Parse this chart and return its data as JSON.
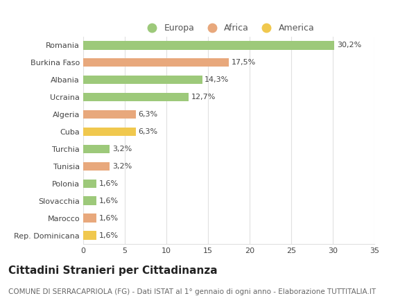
{
  "categories": [
    "Romania",
    "Burkina Faso",
    "Albania",
    "Ucraina",
    "Algeria",
    "Cuba",
    "Turchia",
    "Tunisia",
    "Polonia",
    "Slovacchia",
    "Marocco",
    "Rep. Dominicana"
  ],
  "values": [
    30.2,
    17.5,
    14.3,
    12.7,
    6.3,
    6.3,
    3.2,
    3.2,
    1.6,
    1.6,
    1.6,
    1.6
  ],
  "labels": [
    "30,2%",
    "17,5%",
    "14,3%",
    "12,7%",
    "6,3%",
    "6,3%",
    "3,2%",
    "3,2%",
    "1,6%",
    "1,6%",
    "1,6%",
    "1,6%"
  ],
  "continents": [
    "Europa",
    "Africa",
    "Europa",
    "Europa",
    "Africa",
    "America",
    "Europa",
    "Africa",
    "Europa",
    "Europa",
    "Africa",
    "America"
  ],
  "colors": {
    "Europa": "#9dc97a",
    "Africa": "#e8a87c",
    "America": "#f0c84e"
  },
  "legend_labels": [
    "Europa",
    "Africa",
    "America"
  ],
  "xlim": [
    0,
    35
  ],
  "xticks": [
    0,
    5,
    10,
    15,
    20,
    25,
    30,
    35
  ],
  "title": "Cittadini Stranieri per Cittadinanza",
  "subtitle": "COMUNE DI SERRACAPRIOLA (FG) - Dati ISTAT al 1° gennaio di ogni anno - Elaborazione TUTTITALIA.IT",
  "background_color": "#ffffff",
  "grid_color": "#e0e0e0",
  "bar_height": 0.5,
  "title_fontsize": 11,
  "subtitle_fontsize": 7.5,
  "label_fontsize": 8,
  "tick_fontsize": 8,
  "legend_fontsize": 9
}
